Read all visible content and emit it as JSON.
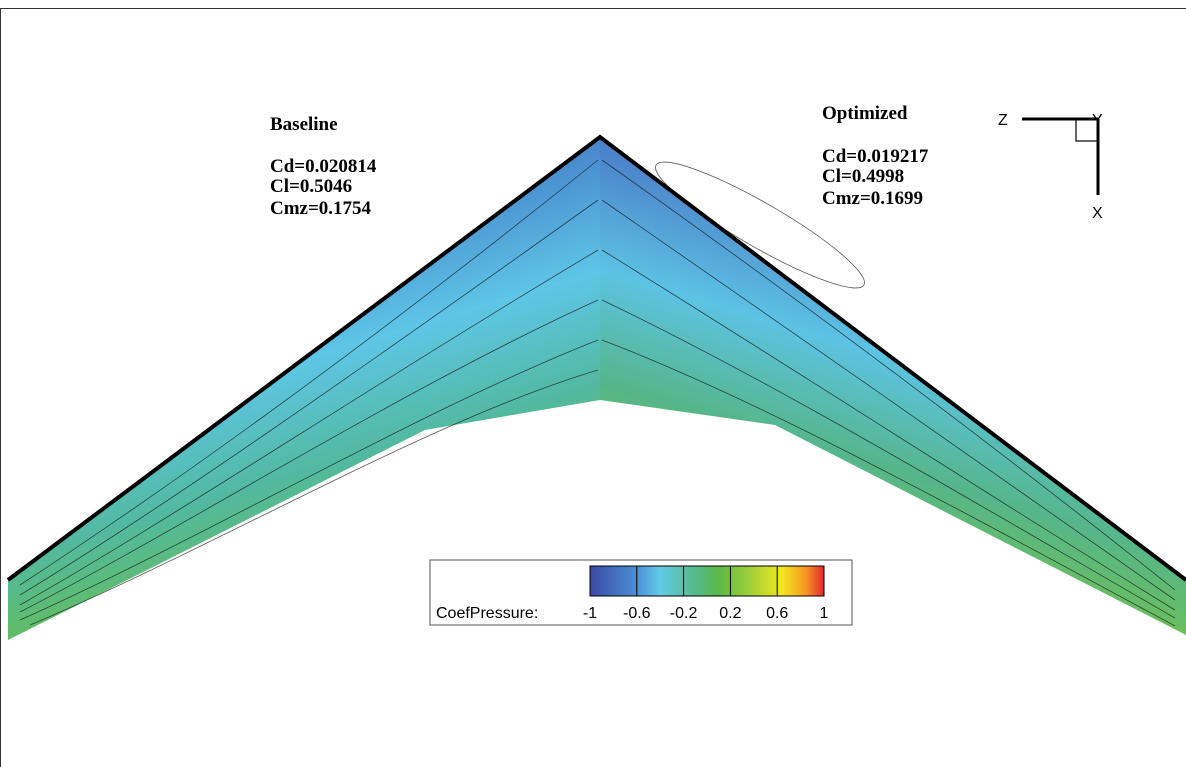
{
  "baseline": {
    "title": "Baseline",
    "cd": "Cd=0.020814",
    "cl": "Cl=0.5046",
    "cmz": "Cmz=0.1754"
  },
  "optimized": {
    "title": "Optimized",
    "cd": "Cd=0.019217",
    "cl": "Cl=0.4998",
    "cmz": "Cmz=0.1699"
  },
  "axes_triad": {
    "z": "Z",
    "y": "Y",
    "x": "X"
  },
  "colorbar": {
    "label": "CoefPressure:",
    "ticks": [
      -1,
      -0.6,
      -0.2,
      0.2,
      0.6,
      1
    ]
  }
}
